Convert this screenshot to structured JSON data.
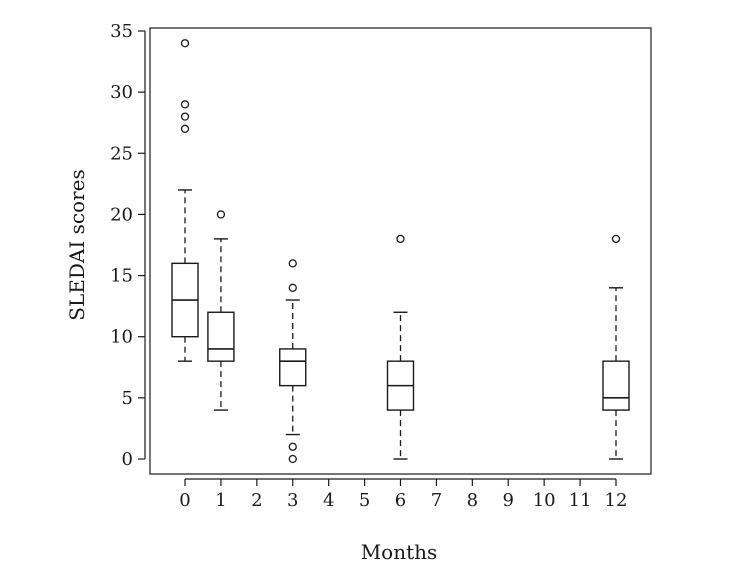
{
  "chart_data": {
    "type": "boxplot",
    "title": "",
    "xlabel": "Months",
    "ylabel": "SLEDAI scores",
    "ylim": [
      0,
      35
    ],
    "y_ticks": [
      0,
      5,
      10,
      15,
      20,
      25,
      30,
      35
    ],
    "x_ticks": [
      0,
      1,
      2,
      3,
      4,
      5,
      6,
      7,
      8,
      9,
      10,
      11,
      12
    ],
    "grid": false,
    "series": [
      {
        "month": 0,
        "whisker_low": 8,
        "q1": 10,
        "median": 13,
        "q3": 16,
        "whisker_high": 22,
        "outliers": [
          27,
          28,
          29,
          34
        ]
      },
      {
        "month": 1,
        "whisker_low": 4,
        "q1": 8,
        "median": 9,
        "q3": 12,
        "whisker_high": 18,
        "outliers": [
          20
        ]
      },
      {
        "month": 3,
        "whisker_low": 2,
        "q1": 6,
        "median": 8,
        "q3": 9,
        "whisker_high": 13,
        "outliers": [
          0,
          1,
          14,
          16
        ]
      },
      {
        "month": 6,
        "whisker_low": 0,
        "q1": 4,
        "median": 6,
        "q3": 8,
        "whisker_high": 12,
        "outliers": [
          18
        ]
      },
      {
        "month": 12,
        "whisker_low": 0,
        "q1": 4,
        "median": 5,
        "q3": 8,
        "whisker_high": 14,
        "outliers": [
          18
        ]
      }
    ]
  }
}
